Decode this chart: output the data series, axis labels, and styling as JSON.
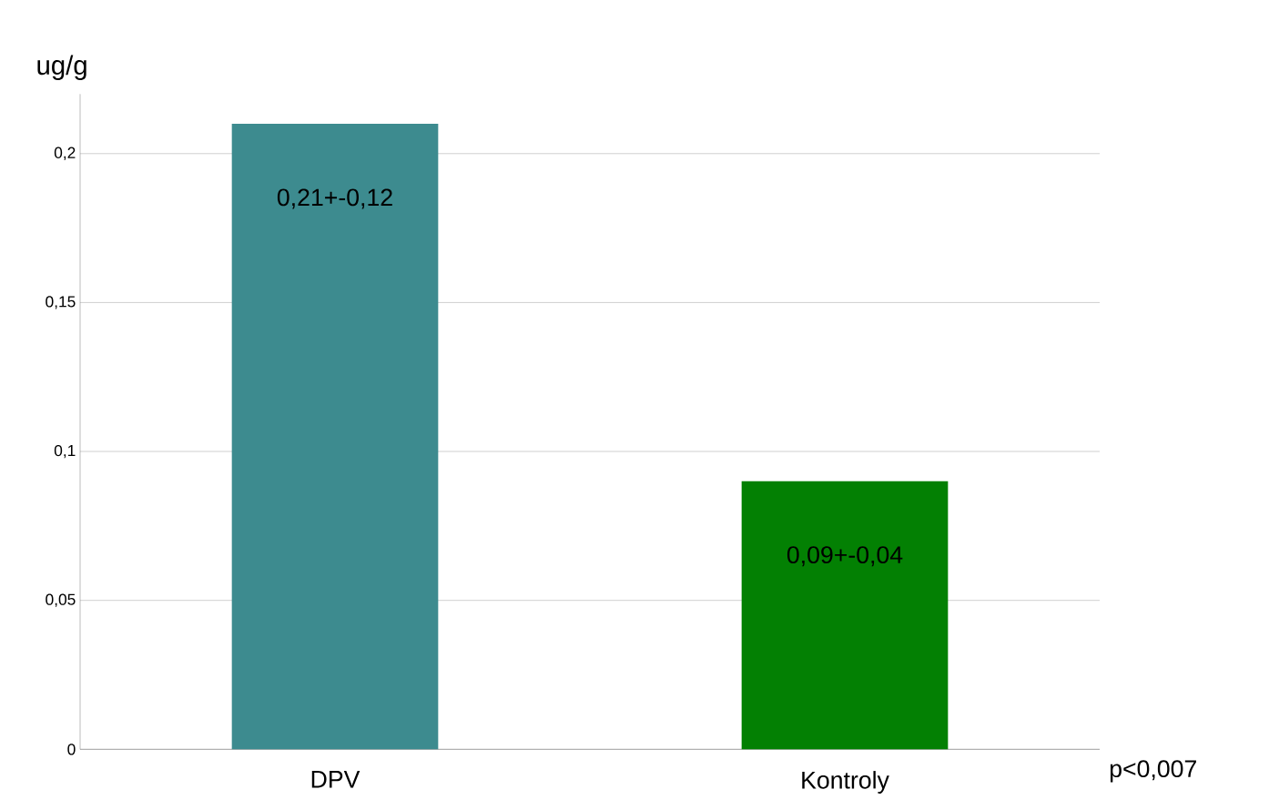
{
  "chart_data": {
    "type": "bar",
    "ylabel": "ug/g",
    "categories": [
      "DPV",
      "Kontroly"
    ],
    "values": [
      0.21,
      0.09
    ],
    "colors": [
      "#3d8b8f",
      "#038003"
    ],
    "value_labels": [
      "0,21+-0,12",
      "0,09+-0,04"
    ],
    "ylim": [
      0,
      0.22
    ],
    "yticks": [
      {
        "value": 0,
        "label": "0"
      },
      {
        "value": 0.05,
        "label": "0,05"
      },
      {
        "value": 0.1,
        "label": "0,1"
      },
      {
        "value": 0.15,
        "label": "0,15"
      },
      {
        "value": 0.2,
        "label": "0,2"
      }
    ],
    "grid": "y",
    "annotations": [
      "p<0,007"
    ]
  }
}
